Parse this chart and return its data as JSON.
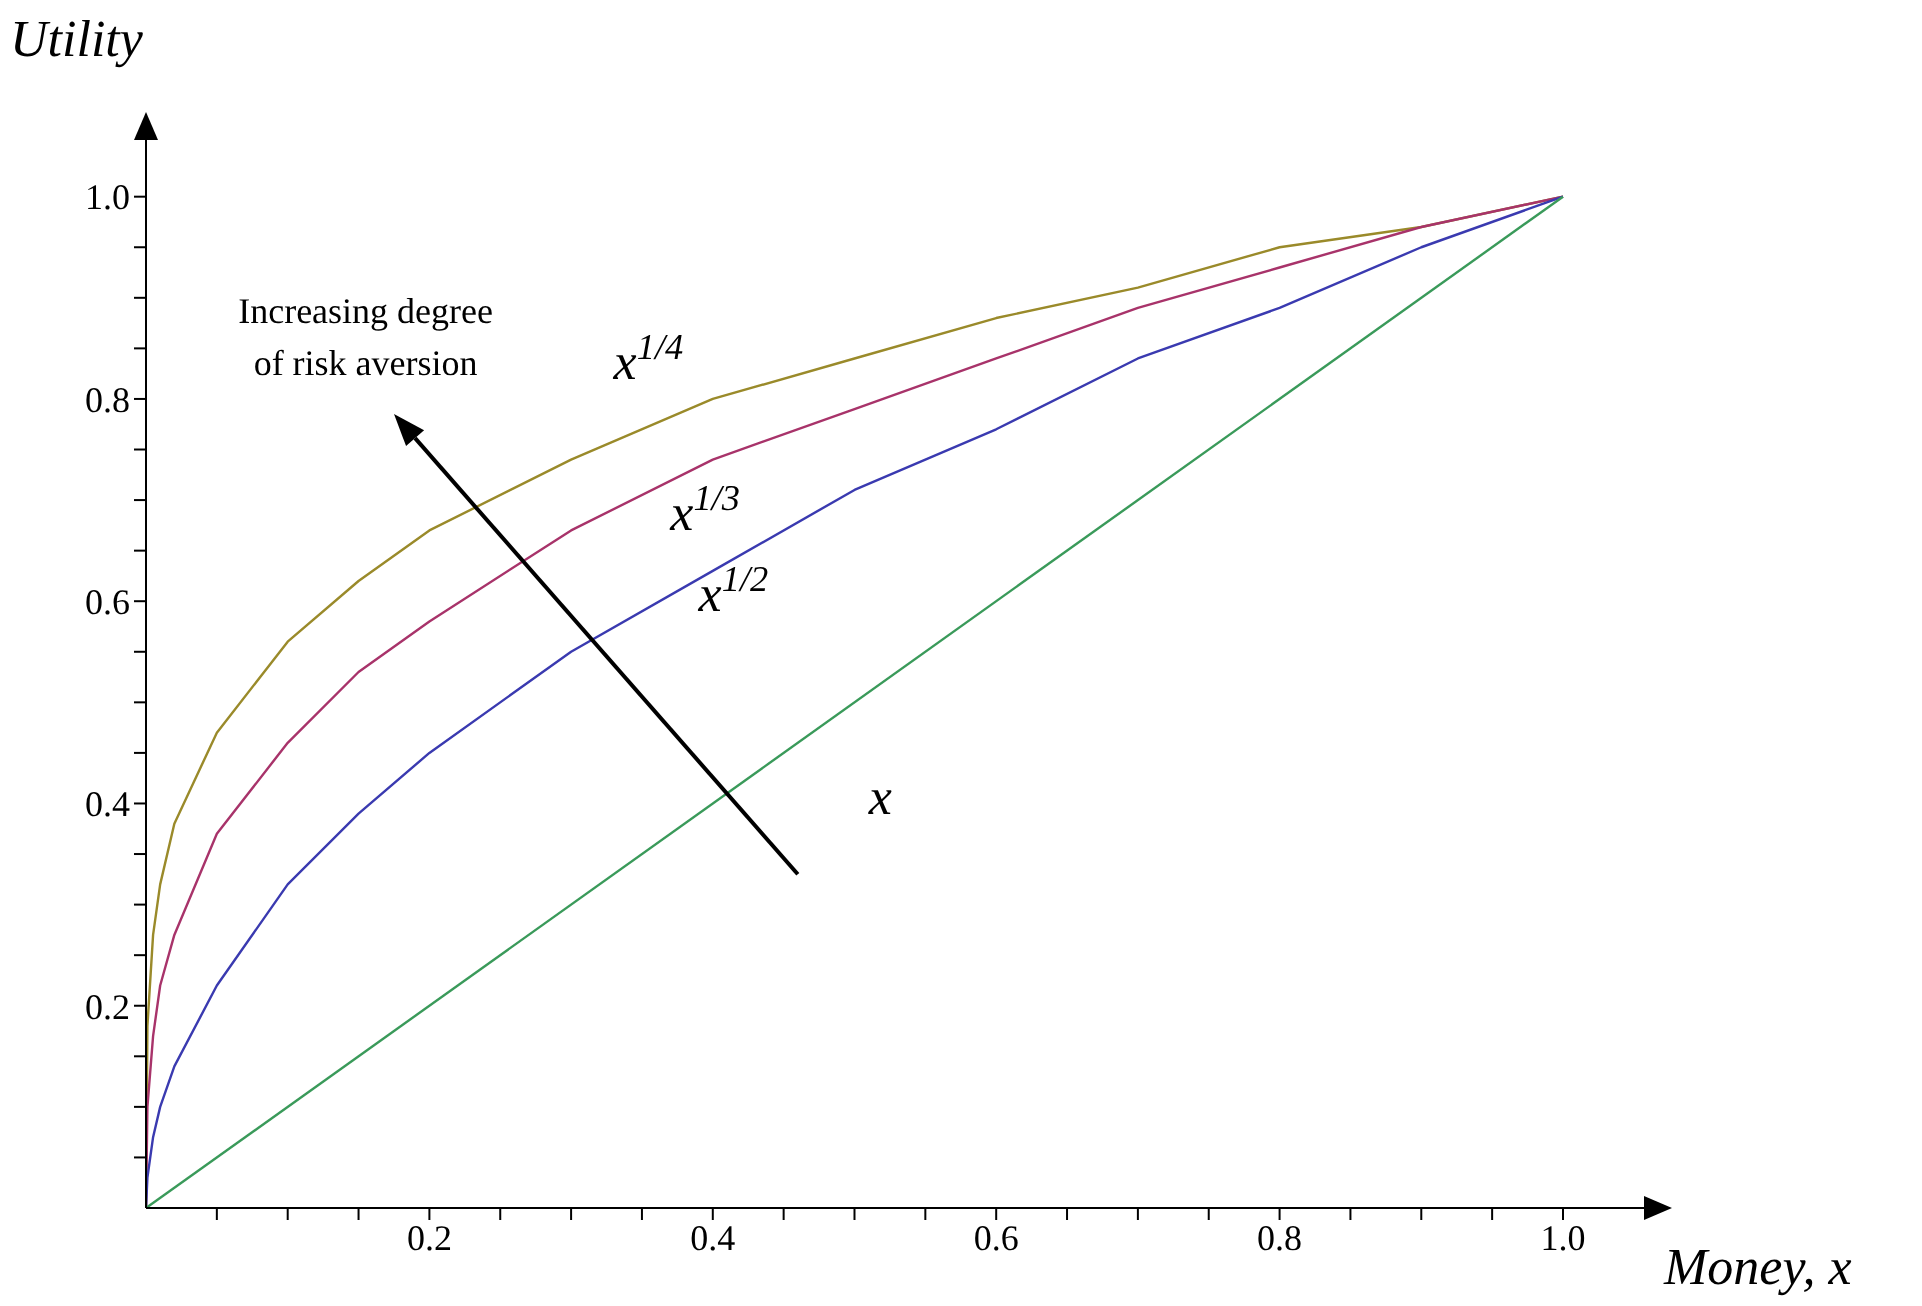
{
  "chart_data": {
    "type": "line",
    "xlabel": "Money, x",
    "ylabel": "Utility",
    "xlim": [
      0,
      1.06
    ],
    "ylim": [
      0,
      1.06
    ],
    "xticks": [
      {
        "value": 0.05,
        "label": null
      },
      {
        "value": 0.1,
        "label": null
      },
      {
        "value": 0.15,
        "label": null
      },
      {
        "value": 0.2,
        "label": "0.2"
      },
      {
        "value": 0.25,
        "label": null
      },
      {
        "value": 0.3,
        "label": null
      },
      {
        "value": 0.35,
        "label": null
      },
      {
        "value": 0.4,
        "label": "0.4"
      },
      {
        "value": 0.45,
        "label": null
      },
      {
        "value": 0.5,
        "label": null
      },
      {
        "value": 0.55,
        "label": null
      },
      {
        "value": 0.6,
        "label": "0.6"
      },
      {
        "value": 0.65,
        "label": null
      },
      {
        "value": 0.7,
        "label": null
      },
      {
        "value": 0.75,
        "label": null
      },
      {
        "value": 0.8,
        "label": "0.8"
      },
      {
        "value": 0.85,
        "label": null
      },
      {
        "value": 0.9,
        "label": null
      },
      {
        "value": 0.95,
        "label": null
      },
      {
        "value": 1,
        "label": "1.0"
      }
    ],
    "yticks": [
      {
        "value": 0.05,
        "label": null
      },
      {
        "value": 0.1,
        "label": null
      },
      {
        "value": 0.15,
        "label": null
      },
      {
        "value": 0.2,
        "label": "0.2"
      },
      {
        "value": 0.25,
        "label": null
      },
      {
        "value": 0.3,
        "label": null
      },
      {
        "value": 0.35,
        "label": null
      },
      {
        "value": 0.4,
        "label": "0.4"
      },
      {
        "value": 0.45,
        "label": null
      },
      {
        "value": 0.5,
        "label": null
      },
      {
        "value": 0.55,
        "label": null
      },
      {
        "value": 0.6,
        "label": "0.6"
      },
      {
        "value": 0.65,
        "label": null
      },
      {
        "value": 0.7,
        "label": null
      },
      {
        "value": 0.75,
        "label": null
      },
      {
        "value": 0.8,
        "label": "0.8"
      },
      {
        "value": 0.85,
        "label": null
      },
      {
        "value": 0.9,
        "label": null
      },
      {
        "value": 0.95,
        "label": null
      },
      {
        "value": 1,
        "label": "1.0"
      }
    ],
    "marker": "none",
    "line_style": "solid",
    "annotations": [
      "Increasing degree of risk aversion"
    ],
    "series": [
      {
        "name": "x$^{1/4}$",
        "color": "#9a8a2a",
        "x": [
          0,
          0.001,
          0.005,
          0.01,
          0.02,
          0.05,
          0.1,
          0.15,
          0.2,
          0.3,
          0.4,
          0.5,
          0.6,
          0.7,
          0.8,
          0.9,
          1
        ],
        "values": [
          0,
          0.18,
          0.27,
          0.32,
          0.38,
          0.47,
          0.56,
          0.62,
          0.67,
          0.74,
          0.8,
          0.84,
          0.88,
          0.91,
          0.95,
          0.97,
          1
        ]
      },
      {
        "name": "x$^{1/3}$",
        "color": "#a8336a",
        "x": [
          0,
          0.001,
          0.005,
          0.01,
          0.02,
          0.05,
          0.1,
          0.15,
          0.2,
          0.3,
          0.4,
          0.5,
          0.6,
          0.7,
          0.8,
          0.9,
          1
        ],
        "values": [
          0,
          0.1,
          0.17,
          0.22,
          0.27,
          0.37,
          0.46,
          0.53,
          0.58,
          0.67,
          0.74,
          0.79,
          0.84,
          0.89,
          0.93,
          0.97,
          1
        ]
      },
      {
        "name": "x$^{1/2}$",
        "color": "#3a3ab0",
        "x": [
          0,
          0.001,
          0.005,
          0.01,
          0.02,
          0.05,
          0.1,
          0.15,
          0.2,
          0.3,
          0.4,
          0.5,
          0.6,
          0.7,
          0.8,
          0.9,
          1
        ],
        "values": [
          0,
          0.03,
          0.07,
          0.1,
          0.14,
          0.22,
          0.32,
          0.39,
          0.45,
          0.55,
          0.63,
          0.71,
          0.77,
          0.84,
          0.89,
          0.95,
          1
        ]
      },
      {
        "name": "x",
        "color": "#3a9a5a",
        "x": [
          0,
          1
        ],
        "values": [
          0,
          1
        ]
      }
    ]
  }
}
